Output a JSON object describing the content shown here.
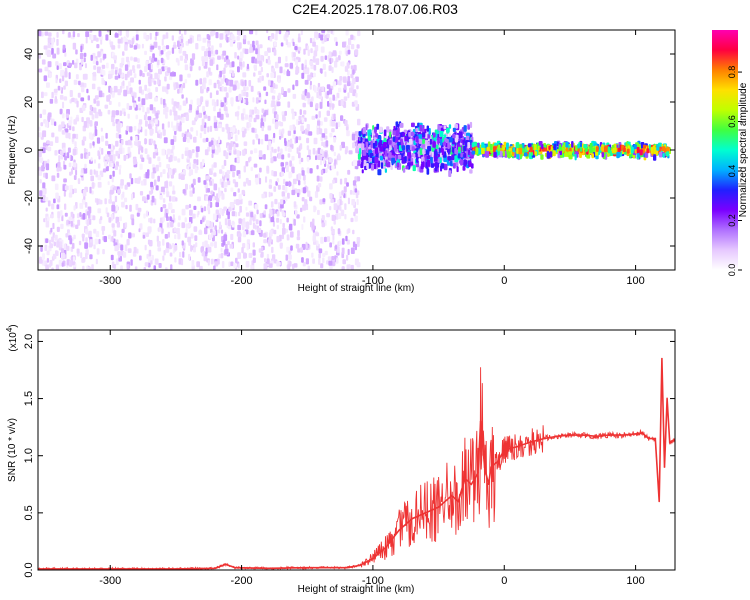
{
  "title": "C2E4.2025.178.07.06.R03",
  "chart_data": [
    {
      "type": "heatmap",
      "xlabel": "Height of straight line (km)",
      "ylabel": "Frequency (Hz)",
      "xlim": [
        -355,
        130
      ],
      "ylim": [
        -50,
        50
      ],
      "x_ticks": [
        -300,
        -200,
        -100,
        0,
        100
      ],
      "y_ticks": [
        -40,
        -20,
        0,
        20,
        40
      ],
      "x_tick_labels": [
        "-300",
        "-200",
        "-100",
        "0",
        "100"
      ],
      "y_tick_labels": [
        "-40",
        "-20",
        "0",
        "20",
        "40"
      ],
      "colorbar": {
        "label": "Normalized spectral amplitude",
        "range": [
          0,
          0.97
        ],
        "ticks": [
          0,
          0.2,
          0.4,
          0.6,
          0.8
        ],
        "tick_labels": [
          "0.0",
          "0.2",
          "0.4",
          "0.6",
          "0.8"
        ],
        "colors": [
          "#ffffff",
          "#e6c8ff",
          "#b070ff",
          "#7a00ff",
          "#2020ff",
          "#00b0ff",
          "#00ffd0",
          "#40ff40",
          "#c0ff00",
          "#ffe000",
          "#ff8000",
          "#ff0040",
          "#ff00b0"
        ]
      },
      "regions": [
        {
          "x_range": [
            -355,
            -112
          ],
          "freq_range": [
            -50,
            50
          ],
          "amplitude": 0.08
        },
        {
          "x_range": [
            -112,
            -25
          ],
          "freq_range": [
            -10,
            12
          ],
          "amplitude": 0.2
        },
        {
          "x_range": [
            -25,
            125
          ],
          "freq_range": [
            -3,
            3
          ],
          "amplitude": 0.45
        }
      ],
      "ridge_peak_amplitude": 0.95
    },
    {
      "type": "line",
      "xlabel": "Height of straight line (km)",
      "ylabel": "SNR (10 * v/v)",
      "y_scale_label": "(x10",
      "y_scale_exponent": "4",
      "xlim": [
        -355,
        130
      ],
      "ylim": [
        0,
        2.1
      ],
      "x_ticks": [
        -300,
        -200,
        -100,
        0,
        100
      ],
      "y_ticks": [
        0,
        0.5,
        1.0,
        1.5,
        2.0
      ],
      "x_tick_labels": [
        "-300",
        "-200",
        "-100",
        "0",
        "100"
      ],
      "y_tick_labels": [
        "0.0",
        "0.5",
        "1.0",
        "1.5",
        "2.0"
      ],
      "color": "#ee3333",
      "x": [
        -355,
        -300,
        -250,
        -220,
        -212,
        -205,
        -180,
        -150,
        -120,
        -110,
        -100,
        -90,
        -80,
        -70,
        -60,
        -50,
        -40,
        -35,
        -30,
        -25,
        -20,
        -18,
        -15,
        -12,
        -10,
        -5,
        0,
        10,
        20,
        30,
        40,
        50,
        60,
        70,
        80,
        90,
        100,
        105,
        110,
        115,
        118,
        120,
        122,
        124,
        126,
        130
      ],
      "y": [
        0.01,
        0.01,
        0.01,
        0.015,
        0.05,
        0.02,
        0.015,
        0.02,
        0.02,
        0.04,
        0.1,
        0.2,
        0.35,
        0.45,
        0.5,
        0.55,
        0.65,
        0.6,
        0.8,
        0.75,
        0.85,
        1.3,
        0.9,
        0.75,
        0.9,
        0.95,
        1.05,
        1.08,
        1.12,
        1.15,
        1.17,
        1.18,
        1.18,
        1.17,
        1.18,
        1.18,
        1.19,
        1.2,
        1.15,
        1.15,
        0.6,
        1.85,
        0.9,
        1.5,
        1.12,
        1.14
      ]
    }
  ]
}
